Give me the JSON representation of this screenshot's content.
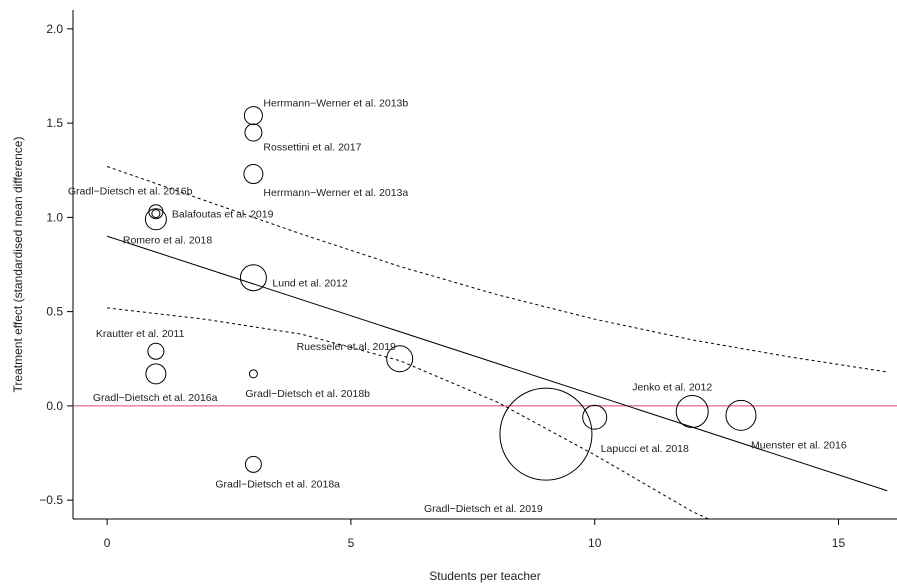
{
  "chart_data": {
    "type": "scatter",
    "xlabel": "Students per teacher",
    "ylabel": "Treatment effect (standardised mean difference)",
    "xlim": [
      -0.7,
      16.2
    ],
    "ylim": [
      -0.6,
      2.1
    ],
    "x_ticks": [
      "0",
      "5",
      "10",
      "15"
    ],
    "x_tick_values": [
      0,
      5,
      10,
      15
    ],
    "y_ticks": [
      "2.0",
      "1.5",
      "1.0",
      "0.5",
      "0.0",
      "−0.5"
    ],
    "y_tick_values": [
      2.0,
      1.5,
      1.0,
      0.5,
      0.0,
      -0.5
    ],
    "points": [
      {
        "label": "Herrmann−Werner et al. 2013b",
        "x": 3,
        "y": 1.54,
        "size": 0.9
      },
      {
        "label": "Rossettini et al. 2017",
        "x": 3,
        "y": 1.45,
        "size": 0.85
      },
      {
        "label": "Herrmann−Werner et al. 2013a",
        "x": 3,
        "y": 1.23,
        "size": 0.95
      },
      {
        "label": "Gradl−Dietsch et al. 2016b",
        "x": 1,
        "y": 1.03,
        "size": 0.7
      },
      {
        "label": "Balafoutas et al. 2019",
        "x": 1,
        "y": 1.02,
        "size": 0.4
      },
      {
        "label": "Romero et al. 2018",
        "x": 1,
        "y": 0.99,
        "size": 1.05
      },
      {
        "label": "Lund et al. 2012",
        "x": 3,
        "y": 0.68,
        "size": 1.3
      },
      {
        "label": "Krautter et al. 2011",
        "x": 1,
        "y": 0.29,
        "size": 0.8
      },
      {
        "label": "Gradl−Dietsch et al. 2016a",
        "x": 1,
        "y": 0.17,
        "size": 1.0
      },
      {
        "label": "Ruesseler et al. 2019",
        "x": 6,
        "y": 0.25,
        "size": 1.3
      },
      {
        "label": "Gradl−Dietsch et al. 2018b",
        "x": 3,
        "y": 0.17,
        "size": 0.4
      },
      {
        "label": "Gradl−Dietsch et al. 2018a",
        "x": 3,
        "y": -0.31,
        "size": 0.8
      },
      {
        "label": "Gradl−Dietsch et al. 2019",
        "x": 9,
        "y": -0.15,
        "size": 4.6
      },
      {
        "label": "Lapucci et al. 2018",
        "x": 10,
        "y": -0.06,
        "size": 1.2
      },
      {
        "label": "Jenko et al. 2012",
        "x": 12,
        "y": -0.03,
        "size": 1.6
      },
      {
        "label": "Muenster et al. 2016",
        "x": 13,
        "y": -0.05,
        "size": 1.5
      }
    ],
    "regression_line": {
      "x": [
        0,
        16
      ],
      "y": [
        0.9,
        -0.45
      ]
    },
    "ci_upper": {
      "x": [
        0,
        2,
        4,
        6,
        8,
        10,
        12,
        14,
        16
      ],
      "y": [
        1.27,
        1.09,
        0.91,
        0.74,
        0.59,
        0.46,
        0.35,
        0.26,
        0.18
      ]
    },
    "ci_lower": {
      "x": [
        0,
        2,
        4,
        6,
        8,
        10,
        12,
        12.5
      ],
      "y": [
        0.52,
        0.46,
        0.38,
        0.24,
        0.02,
        -0.26,
        -0.56,
        -0.62
      ]
    },
    "reference_line": {
      "y": 0,
      "color": "#e0427a"
    },
    "grid": false,
    "legend": "none"
  }
}
